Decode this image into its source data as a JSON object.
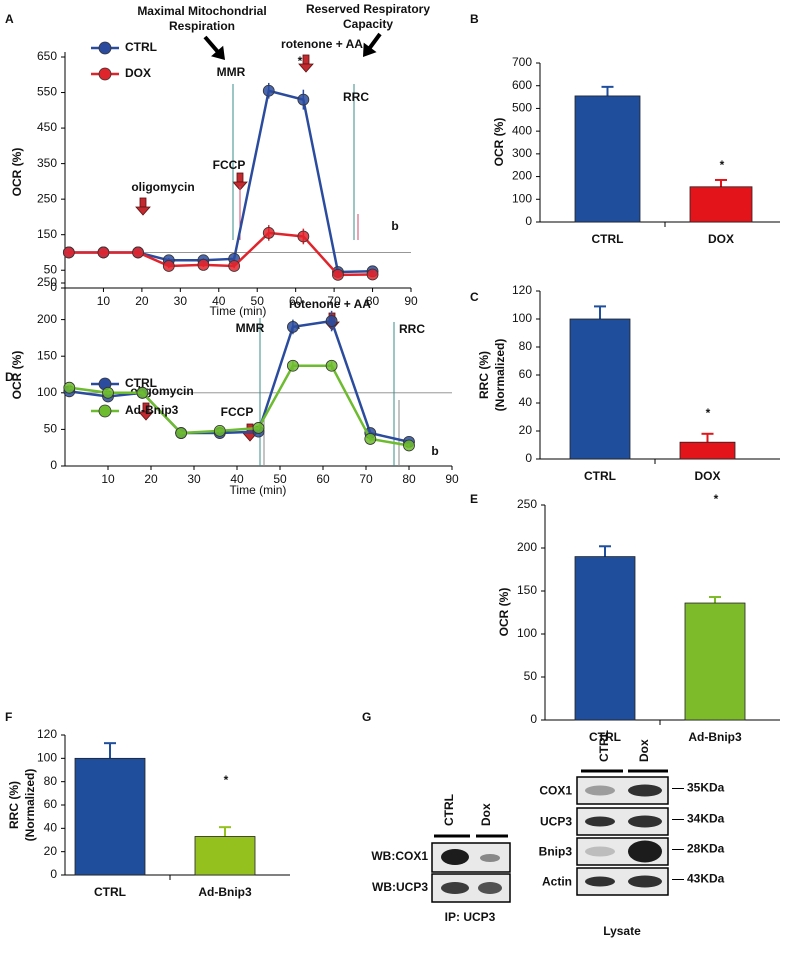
{
  "chart_data": [
    {
      "type": "line",
      "panel": "A",
      "xlabel": "Time (min)",
      "ylabel": "OCR (%)",
      "xlim": [
        0,
        90
      ],
      "xticks": [
        10,
        20,
        30,
        40,
        50,
        60,
        70,
        80,
        90
      ],
      "ylim": [
        0,
        650
      ],
      "yticks": [
        0,
        50,
        150,
        250,
        350,
        450,
        550,
        650
      ],
      "reference_line": 100,
      "annotations": [
        "Maximal Mitochondrial",
        "Respiration",
        "Reserved Respiratory",
        "Capacity",
        "MMR",
        "rotenone + AA",
        "RRC",
        "*",
        "FCCP",
        "oligomycin",
        "b"
      ],
      "series": [
        {
          "name": "CTRL",
          "color": "#2b4c9e",
          "x": [
            1,
            10,
            19,
            27,
            36,
            44,
            53,
            62,
            71,
            80
          ],
          "values": [
            100,
            100,
            100,
            78,
            78,
            82,
            555,
            530,
            45,
            47
          ],
          "errors": [
            6,
            6,
            6,
            6,
            6,
            8,
            22,
            28,
            5,
            5
          ]
        },
        {
          "name": "DOX",
          "color": "#e0242b",
          "x": [
            1,
            10,
            19,
            27,
            36,
            44,
            53,
            62,
            71,
            80
          ],
          "values": [
            100,
            100,
            100,
            62,
            65,
            62,
            155,
            145,
            37,
            38
          ],
          "errors": [
            6,
            6,
            6,
            6,
            6,
            6,
            22,
            22,
            5,
            5
          ]
        }
      ]
    },
    {
      "type": "bar",
      "panel": "B",
      "ylabel": "OCR (%)",
      "categories": [
        "CTRL",
        "DOX"
      ],
      "values": [
        555,
        155
      ],
      "errors": [
        40,
        30
      ],
      "colors": [
        "#1f4e9c",
        "#e3151b"
      ],
      "ylim": [
        0,
        700
      ],
      "yticks": [
        0,
        100,
        200,
        300,
        400,
        500,
        600,
        700
      ],
      "annotations": [
        "*"
      ]
    },
    {
      "type": "bar",
      "panel": "C",
      "ylabel": [
        "RRC (%)",
        "(Normalized)"
      ],
      "categories": [
        "CTRL",
        "DOX"
      ],
      "values": [
        100,
        12
      ],
      "errors": [
        9,
        6
      ],
      "colors": [
        "#1f4e9c",
        "#e3151b"
      ],
      "ylim": [
        0,
        120
      ],
      "yticks": [
        0,
        20,
        40,
        60,
        80,
        100,
        120
      ],
      "annotations": [
        "*"
      ]
    },
    {
      "type": "line",
      "panel": "D",
      "xlabel": "Time (min)",
      "ylabel": "OCR (%)",
      "xlim": [
        0,
        90
      ],
      "xticks": [
        10,
        20,
        30,
        40,
        50,
        60,
        70,
        80,
        90
      ],
      "ylim": [
        0,
        250
      ],
      "yticks": [
        0,
        50,
        100,
        150,
        200,
        250
      ],
      "reference_line": 100,
      "annotations": [
        "MMR",
        "*",
        "rotenone + AA",
        "RRC",
        "oligomycin",
        "FCCP",
        "b"
      ],
      "series": [
        {
          "name": "CTRL",
          "color": "#2b4c9e",
          "x": [
            1,
            10,
            18,
            27,
            36,
            45,
            53,
            62,
            71,
            80
          ],
          "values": [
            102,
            95,
            100,
            45,
            45,
            47,
            190,
            198,
            45,
            33
          ],
          "errors": [
            3,
            3,
            3,
            3,
            3,
            3,
            10,
            14,
            3,
            3
          ]
        },
        {
          "name": "Ad-Bnip3",
          "color": "#6dbb2e",
          "x": [
            1,
            10,
            18,
            27,
            36,
            45,
            53,
            62,
            71,
            80
          ],
          "values": [
            107,
            100,
            100,
            45,
            48,
            52,
            137,
            137,
            37,
            28
          ],
          "errors": [
            3,
            3,
            3,
            3,
            3,
            3,
            7,
            6,
            3,
            3
          ]
        }
      ]
    },
    {
      "type": "bar",
      "panel": "E",
      "ylabel": "OCR (%)",
      "categories": [
        "CTRL",
        "Ad-Bnip3"
      ],
      "values": [
        190,
        136
      ],
      "errors": [
        12,
        7
      ],
      "colors": [
        "#1f4e9c",
        "#7dbb2a"
      ],
      "ylim": [
        0,
        250
      ],
      "yticks": [
        0,
        50,
        100,
        150,
        200,
        250
      ],
      "annotations": [
        "*"
      ]
    },
    {
      "type": "bar",
      "panel": "F",
      "ylabel": [
        "RRC (%)",
        "(Normalized)"
      ],
      "categories": [
        "CTRL",
        "Ad-Bnip3"
      ],
      "values": [
        100,
        33
      ],
      "errors": [
        13,
        8
      ],
      "colors": [
        "#1f4e9c",
        "#95c11f"
      ],
      "ylim": [
        0,
        120
      ],
      "yticks": [
        0,
        20,
        40,
        60,
        80,
        100,
        120
      ],
      "annotations": [
        "*"
      ]
    }
  ],
  "blot": {
    "panel": "G",
    "ip_lanes": [
      "CTRL",
      "Dox"
    ],
    "ip_rows": [
      "WB:COX1",
      "WB:UCP3"
    ],
    "ip_caption": "IP: UCP3",
    "lysate_lanes": [
      "CTRL",
      "Dox"
    ],
    "lysate_rows": [
      "COX1",
      "UCP3",
      "Bnip3",
      "Actin"
    ],
    "sizes": [
      "35KDa",
      "34KDa",
      "28KDa",
      "43KDa"
    ],
    "lysate_caption": "Lysate"
  }
}
